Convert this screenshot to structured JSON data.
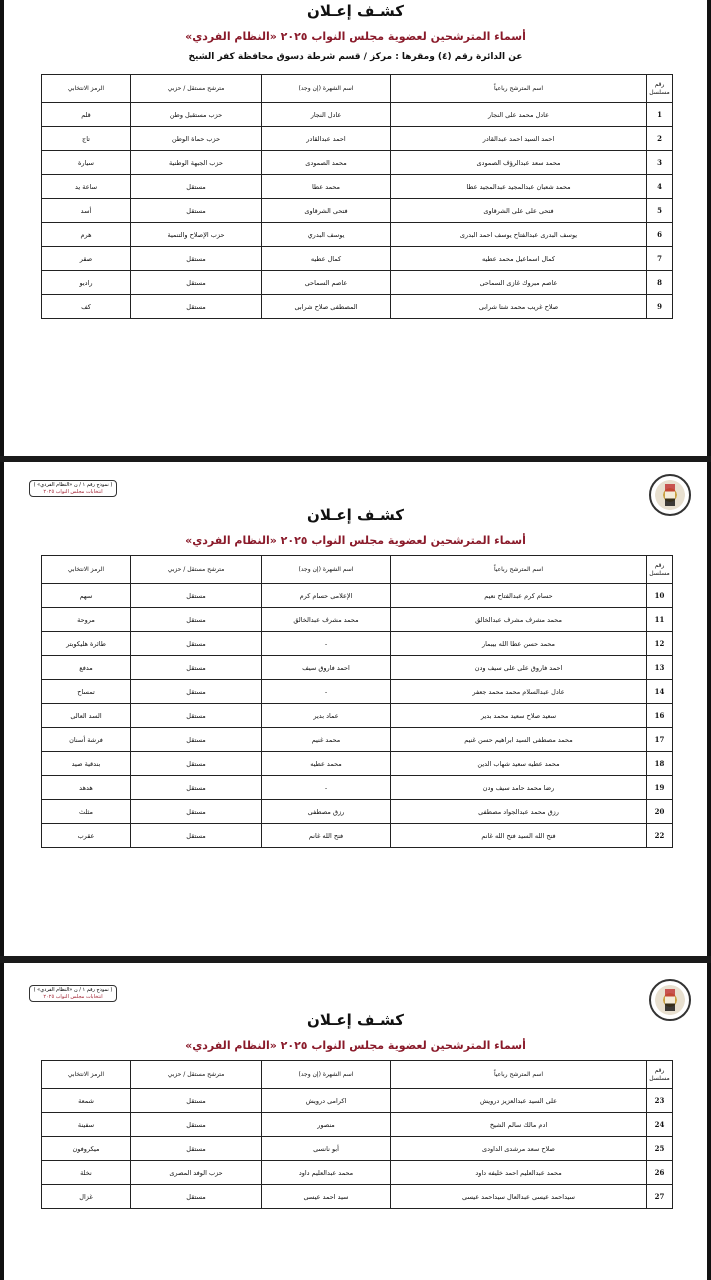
{
  "colors": {
    "subtitle": "#8a1a2a",
    "border": "#111111"
  },
  "title": "كشـف إعـلان",
  "subtitle": "أسماء المترشحين لعضوية مجلس النواب ٢٠٢٥ «النظام الفردي»",
  "district": "عن الدائرة رقم (٤) ومقرها : مركز / قسم شرطة دسوق محافظة كفر الشيخ",
  "badge": {
    "line1": "( نموذج رقم ١ / ن «النظام الفردي» )",
    "line2": "انتخابات مجلس النواب ٢٠٢٥"
  },
  "logo": "egypt-eagle-emblem",
  "headers": {
    "num": "رقم مسلسل",
    "name": "اسم المترشح رباعياً",
    "nickname": "اسم الشهرة (إن وجد)",
    "type": "مترشح مستقل / حزبي",
    "symbol": "الرمز الانتخابي"
  },
  "pages": [
    {
      "rows": [
        [
          "1",
          "عادل محمد على النجار",
          "عادل النجار",
          "حزب مستقبل وطن",
          "قلم"
        ],
        [
          "2",
          "احمد السيد احمد عبدالقادر",
          "احمد عبدالقادر",
          "حزب حماة الوطن",
          "تاج"
        ],
        [
          "3",
          "محمد سعد عبدالرؤف الصمودى",
          "محمد الصمودى",
          "حزب الجبهة الوطنية",
          "سيارة"
        ],
        [
          "4",
          "محمد شعبان عبدالمجيد عبدالمجيد عطا",
          "محمد عطا",
          "مستقل",
          "ساعة يد"
        ],
        [
          "5",
          "فتحى على على الشرقاوى",
          "فتحى الشرقاوى",
          "مستقل",
          "أسد"
        ],
        [
          "6",
          "يوسف البدرى عبدالفتاح يوسف احمد البدرى",
          "يوسف البدري",
          "حزب الإصلاح والتنمية",
          "هرم"
        ],
        [
          "7",
          "كمال اسماعيل محمد عطيه",
          "كمال عطيه",
          "مستقل",
          "صقر"
        ],
        [
          "8",
          "عاصم مبروك غازى السماحى",
          "عاصم السماحى",
          "مستقل",
          "راديو"
        ],
        [
          "9",
          "صلاح غريب محمد شتا شرابى",
          "المصطفى صلاح شرابى",
          "مستقل",
          "كف"
        ]
      ]
    },
    {
      "rows": [
        [
          "10",
          "حسام كرم عبدالفتاح نعيم",
          "الإعلامى حسام كرم",
          "مستقل",
          "سهم"
        ],
        [
          "11",
          "محمد مشرف مشرف عبدالخالق",
          "محمد مشرف عبدالخالق",
          "مستقل",
          "مروحة"
        ],
        [
          "12",
          "محمد حسن عطا الله بيبمار",
          "-",
          "مستقل",
          "طائرة هليكوبتر"
        ],
        [
          "13",
          "احمد فاروق على على سيف ودن",
          "احمد فاروق سيف",
          "مستقل",
          "مدفع"
        ],
        [
          "14",
          "عادل عبدالسلام محمد محمد جعفر",
          "-",
          "مستقل",
          "تمساح"
        ],
        [
          "16",
          "سعيد صلاح سعيد محمد بدير",
          "عماد بدير",
          "مستقل",
          "السد العالى"
        ],
        [
          "17",
          "محمد مصطفى السيد ابراهيم حسن غنيم",
          "محمد غنيم",
          "مستقل",
          "فرشة أسنان"
        ],
        [
          "18",
          "محمد عطيه سعيد شهاب الدين",
          "محمد عطيه",
          "مستقل",
          "بندقية صيد"
        ],
        [
          "19",
          "رضا محمد حامد سيف ودن",
          "-",
          "مستقل",
          "هدهد"
        ],
        [
          "20",
          "رزق محمد عبدالجواد مصطفى",
          "رزق مصطفى",
          "مستقل",
          "مثلث"
        ],
        [
          "22",
          "فتح الله السيد فتح الله غانم",
          "فتح الله غانم",
          "مستقل",
          "عقرب"
        ]
      ]
    },
    {
      "rows": [
        [
          "23",
          "على السيد عبدالعزيز درويش",
          "اكرامى درويش",
          "مستقل",
          "شمعة"
        ],
        [
          "24",
          "ادم مالك سالم الشيخ",
          "منصور",
          "مستقل",
          "سفينة"
        ],
        [
          "25",
          "صلاح سعد مرشدى الداودى",
          "أبو نانسى",
          "مستقل",
          "ميكروفون"
        ],
        [
          "26",
          "محمد عبدالعليم احمد خليفه داود",
          "محمد عبدالعليم داود",
          "حزب الوفد المصرى",
          "نخلة"
        ],
        [
          "27",
          "سيداحمد عيسى عبدالعال سيداحمد عيسى",
          "سيد احمد عيسى",
          "مستقل",
          "غزال"
        ]
      ]
    }
  ]
}
